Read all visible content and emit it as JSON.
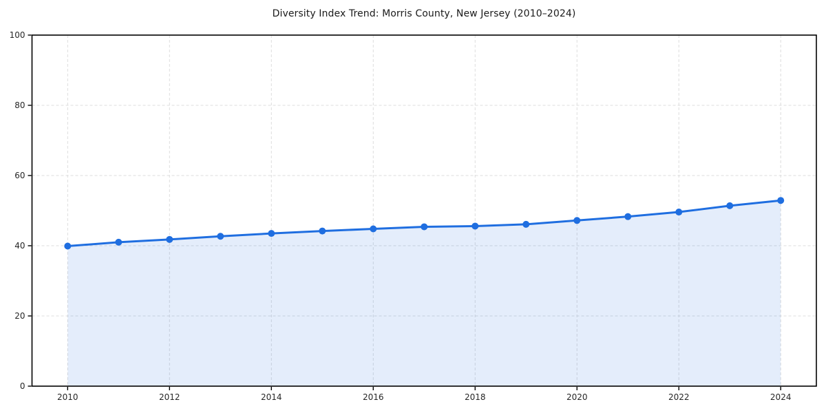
{
  "chart_data": {
    "type": "line",
    "title": "Diversity Index Trend: Morris County, New Jersey (2010–2024)",
    "xlabel": "",
    "ylabel": "",
    "x": [
      2010,
      2011,
      2012,
      2013,
      2014,
      2015,
      2016,
      2017,
      2018,
      2019,
      2020,
      2021,
      2022,
      2023,
      2024
    ],
    "series": [
      {
        "name": "Diversity Index",
        "values": [
          39.9,
          41.0,
          41.8,
          42.7,
          43.5,
          44.2,
          44.8,
          45.4,
          45.6,
          46.1,
          47.2,
          48.3,
          49.6,
          51.4,
          52.9
        ]
      }
    ],
    "x_ticks": [
      2010,
      2012,
      2014,
      2016,
      2018,
      2020,
      2022,
      2024
    ],
    "y_ticks": [
      0,
      20,
      40,
      60,
      80,
      100
    ],
    "xlim": [
      2009.3,
      2024.7
    ],
    "ylim": [
      0,
      100
    ],
    "grid": true,
    "grid_style": "dashed",
    "legend": false,
    "area_fill": true,
    "colors": {
      "line": "#1f6ee0",
      "marker": "#1f6ee0",
      "fill": "rgba(31,110,224,0.12)",
      "grid": "#dcdcdc",
      "spine": "#000000",
      "text": "#262626"
    }
  }
}
